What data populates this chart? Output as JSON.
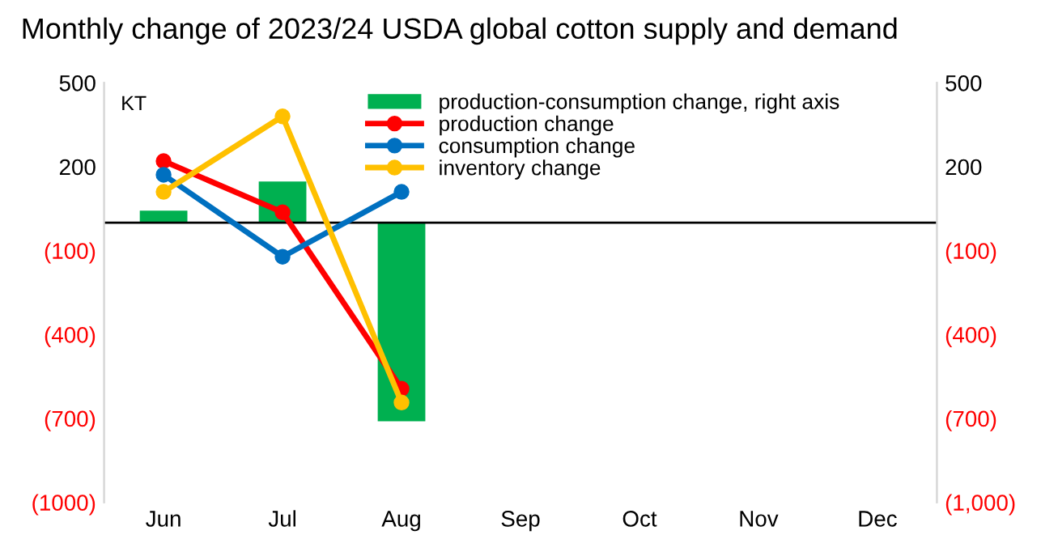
{
  "chart_data": {
    "type": "line",
    "title": "Monthly change of 2023/24 USDA global cotton supply and demand",
    "ylabel": "KT",
    "categories": [
      "Jun",
      "Jul",
      "Aug",
      "Sep",
      "Oct",
      "Nov",
      "Dec"
    ],
    "series": [
      {
        "name": "production-consumption change, right axis",
        "type": "bar",
        "axis": "y2",
        "color": "#00b050",
        "values": [
          43,
          147,
          -710,
          null,
          null,
          null,
          null
        ]
      },
      {
        "name": "production change",
        "color": "#ff0000",
        "values": [
          220,
          37,
          -594,
          null,
          null,
          null,
          null
        ]
      },
      {
        "name": "consumption change",
        "color": "#0070c0",
        "values": [
          171,
          -122,
          110,
          null,
          null,
          null,
          null
        ]
      },
      {
        "name": "inventory change",
        "color": "#ffc000",
        "values": [
          110,
          380,
          -643,
          null,
          null,
          null,
          null
        ]
      }
    ],
    "ylim": [
      -1000,
      500
    ],
    "yticks": [
      500,
      200,
      {
        "value": -100,
        "label": "(100)"
      },
      {
        "value": -400,
        "label": "(400)"
      },
      {
        "value": -700,
        "label": "(700)"
      },
      {
        "value": -1000,
        "label": "(1000)"
      }
    ],
    "y2lim": [
      -1000,
      500
    ],
    "y2ticks": [
      500,
      200,
      {
        "value": -100,
        "label": "(100)"
      },
      {
        "value": -400,
        "label": "(400)"
      },
      {
        "value": -700,
        "label": "(700)"
      },
      {
        "value": -1000,
        "label": "(1,000)"
      }
    ],
    "ref_lines": [
      {
        "axis": "y",
        "value": 0,
        "color": "#000000"
      }
    ],
    "legend": "top",
    "grid": false,
    "marker": "circle",
    "line_style": "solid"
  }
}
